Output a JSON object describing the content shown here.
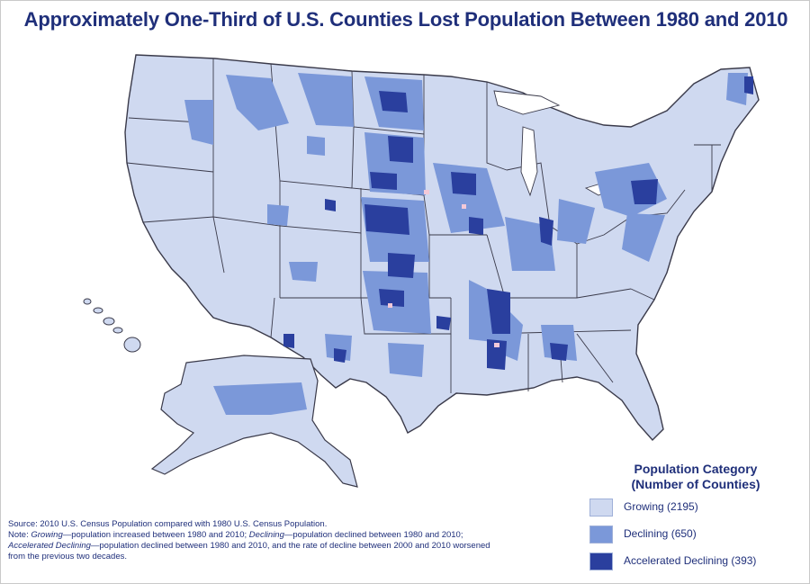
{
  "title": "Approximately One-Third of U.S. Counties Lost Population Between 1980 and 2010",
  "legend": {
    "heading_line1": "Population Category",
    "heading_line2": "(Number of Counties)",
    "items": [
      {
        "label": "Growing (2195)",
        "color": "#cfd9f0"
      },
      {
        "label": "Declining (650)",
        "color": "#7b98d9"
      },
      {
        "label": "Accelerated Declining (393)",
        "color": "#2a3f9e"
      }
    ]
  },
  "source": {
    "line1": "Source: 2010 U.S. Census Population compared with 1980 U.S. Census Population.",
    "note_prefix": "Note: ",
    "growing_term": "Growing",
    "growing_text": "—population increased between 1980 and 2010; ",
    "declining_term": "Declining",
    "declining_text": "—population declined between 1980 and 2010;",
    "accel_term": "Accelerated Declining",
    "accel_text": "—population declined between 1980 and 2010, and the rate of decline between 2000 and 2010 worsened",
    "line4": "from the previous two decades."
  },
  "colors": {
    "growing": "#cfd9f0",
    "declining": "#7b98d9",
    "accelerated": "#2a3f9e",
    "border": "#3a3a4a",
    "title": "#1f2f7a",
    "highlight": "#f3c9d8"
  }
}
